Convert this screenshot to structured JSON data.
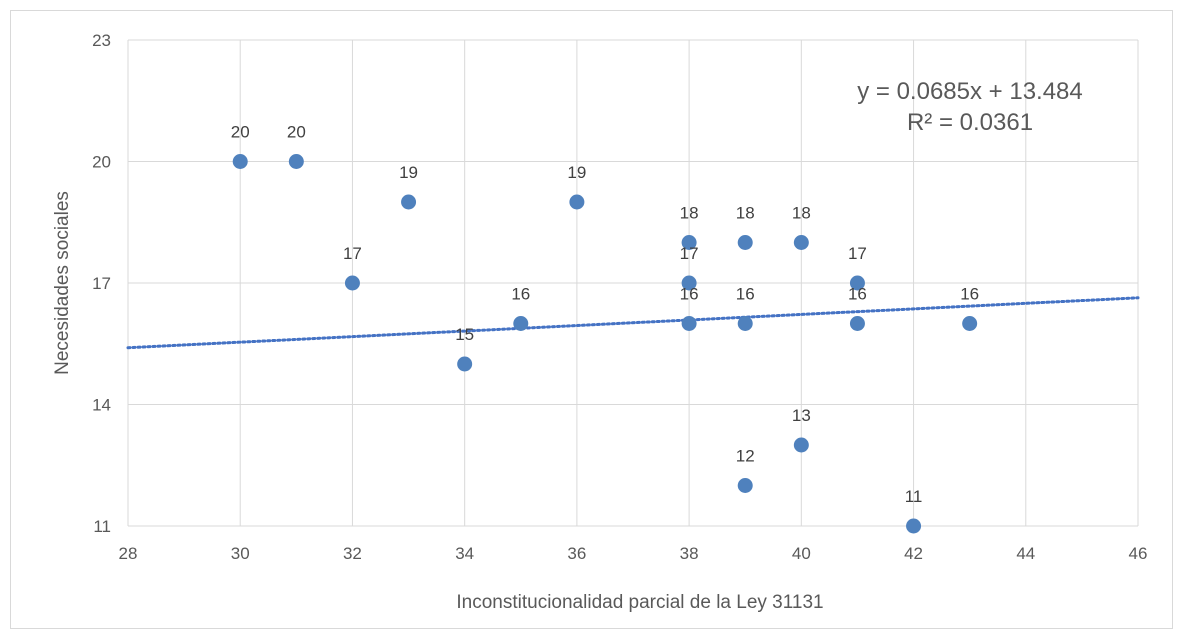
{
  "chart_data": {
    "type": "scatter",
    "title": "",
    "xlabel": "Inconstitucionalidad parcial de la Ley 31131",
    "ylabel": "Necesidades sociales",
    "xlim": [
      28,
      46
    ],
    "ylim": [
      11,
      23
    ],
    "x_ticks": [
      28,
      30,
      32,
      34,
      36,
      38,
      40,
      42,
      44,
      46
    ],
    "y_ticks": [
      11,
      14,
      17,
      20,
      23
    ],
    "grid": true,
    "legend": "none",
    "marker_color": "#4f81bd",
    "trendline_color": "#4472c4",
    "points": [
      {
        "x": 30,
        "y": 20,
        "label": "20"
      },
      {
        "x": 31,
        "y": 20,
        "label": "20"
      },
      {
        "x": 32,
        "y": 17,
        "label": "17"
      },
      {
        "x": 33,
        "y": 19,
        "label": "19"
      },
      {
        "x": 34,
        "y": 15,
        "label": "15"
      },
      {
        "x": 35,
        "y": 16,
        "label": "16"
      },
      {
        "x": 36,
        "y": 19,
        "label": "19"
      },
      {
        "x": 38,
        "y": 18,
        "label": "18"
      },
      {
        "x": 38,
        "y": 17,
        "label": "17"
      },
      {
        "x": 38,
        "y": 16,
        "label": "16"
      },
      {
        "x": 39,
        "y": 18,
        "label": "18"
      },
      {
        "x": 39,
        "y": 16,
        "label": "16"
      },
      {
        "x": 39,
        "y": 12,
        "label": "12"
      },
      {
        "x": 40,
        "y": 18,
        "label": "18"
      },
      {
        "x": 40,
        "y": 13,
        "label": "13"
      },
      {
        "x": 41,
        "y": 17,
        "label": "17"
      },
      {
        "x": 41,
        "y": 16,
        "label": "16"
      },
      {
        "x": 42,
        "y": 11,
        "label": "11"
      },
      {
        "x": 43,
        "y": 16,
        "label": "16"
      }
    ],
    "trendline": {
      "type": "linear",
      "slope": 0.0685,
      "intercept": 13.484,
      "equation": "y = 0.0685x + 13.484",
      "r_squared": "R² = 0.0361"
    }
  }
}
